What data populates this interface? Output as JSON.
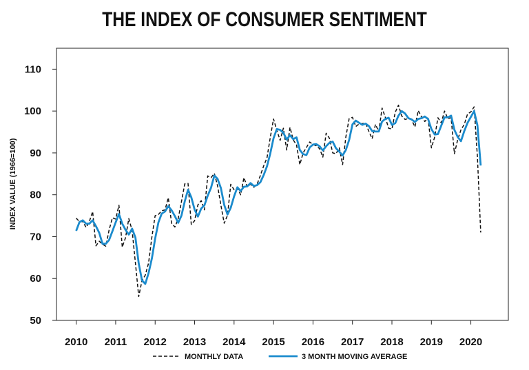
{
  "chart_data": {
    "type": "line",
    "title": "THE INDEX OF CONSUMER SENTIMENT",
    "ylabel": "INDEX VALUE (1966=100)",
    "xlabel": "",
    "ylim": [
      50,
      115
    ],
    "xlim": [
      2009.5,
      2020.95
    ],
    "yticks": [
      50,
      60,
      70,
      80,
      90,
      100,
      110
    ],
    "xticks": [
      2010,
      2011,
      2012,
      2013,
      2014,
      2015,
      2016,
      2017,
      2018,
      2019,
      2020
    ],
    "grid": false,
    "legend_position": "bottom-center",
    "series": [
      {
        "name": "MONTHLY DATA",
        "style": "dashed",
        "color": "#111111",
        "values": [
          74.4,
          73.6,
          73.6,
          72.2,
          73.6,
          76.0,
          67.8,
          68.9,
          68.2,
          67.7,
          71.6,
          74.5,
          74.2,
          77.5,
          67.5,
          69.8,
          74.3,
          71.5,
          63.7,
          55.7,
          59.5,
          60.8,
          63.7,
          69.9,
          75.0,
          75.3,
          76.2,
          76.4,
          79.3,
          73.2,
          72.3,
          74.3,
          78.3,
          82.6,
          82.7,
          72.9,
          73.8,
          77.6,
          78.6,
          76.4,
          84.5,
          84.1,
          85.1,
          82.1,
          77.5,
          73.2,
          75.1,
          82.5,
          81.2,
          81.6,
          80.0,
          84.1,
          81.9,
          82.5,
          81.8,
          82.5,
          84.6,
          86.9,
          88.8,
          93.6,
          98.1,
          95.4,
          93.0,
          95.9,
          90.7,
          96.1,
          93.1,
          91.9,
          87.2,
          90.0,
          91.3,
          92.6,
          92.0,
          91.7,
          91.0,
          89.0,
          94.7,
          93.5,
          90.0,
          89.8,
          91.2,
          87.2,
          93.8,
          98.2,
          98.5,
          96.3,
          96.9,
          97.0,
          97.1,
          95.1,
          93.4,
          96.8,
          95.1,
          100.7,
          98.5,
          95.9,
          95.7,
          99.7,
          101.4,
          98.8,
          98.0,
          98.2,
          97.9,
          96.2,
          100.1,
          98.6,
          97.5,
          98.3,
          91.2,
          93.8,
          98.4,
          97.2,
          100.0,
          98.2,
          98.4,
          89.8,
          93.2,
          95.5,
          96.8,
          99.3,
          99.8,
          101.0,
          89.1,
          71.0
        ]
      },
      {
        "name": "3 MONTH MOVING AVERAGE",
        "style": "solid",
        "color": "#1b8bcd",
        "values": [
          71.4,
          73.5,
          73.9,
          73.1,
          73.1,
          73.9,
          72.5,
          70.9,
          68.3,
          68.3,
          69.2,
          71.3,
          73.4,
          75.4,
          73.1,
          71.6,
          70.5,
          71.9,
          69.8,
          63.6,
          59.6,
          58.7,
          61.3,
          64.8,
          69.5,
          73.4,
          75.5,
          76.0,
          77.3,
          76.3,
          74.9,
          73.3,
          75.0,
          78.4,
          81.2,
          79.4,
          76.5,
          74.8,
          76.7,
          77.5,
          79.8,
          81.7,
          84.6,
          83.8,
          81.6,
          77.6,
          75.3,
          76.9,
          79.6,
          81.8,
          80.9,
          81.9,
          82.0,
          82.8,
          82.1,
          82.3,
          83.0,
          84.7,
          86.8,
          89.8,
          93.5,
          95.7,
          95.5,
          94.8,
          93.2,
          94.2,
          93.3,
          93.7,
          90.7,
          89.7,
          89.5,
          91.3,
          92.0,
          92.1,
          91.6,
          90.6,
          91.6,
          92.4,
          92.7,
          91.1,
          90.3,
          89.4,
          90.7,
          93.1,
          96.8,
          97.7,
          97.2,
          96.7,
          97.0,
          96.4,
          95.2,
          95.1,
          95.1,
          97.5,
          98.1,
          98.4,
          96.7,
          97.1,
          98.9,
          100.0,
          99.4,
          98.3,
          98.0,
          97.4,
          98.1,
          98.3,
          98.7,
          98.1,
          95.7,
          94.4,
          94.5,
          96.5,
          98.5,
          98.5,
          98.9,
          95.5,
          93.8,
          92.8,
          95.2,
          97.2,
          98.6,
          100.0,
          96.6,
          87.0
        ]
      }
    ]
  }
}
